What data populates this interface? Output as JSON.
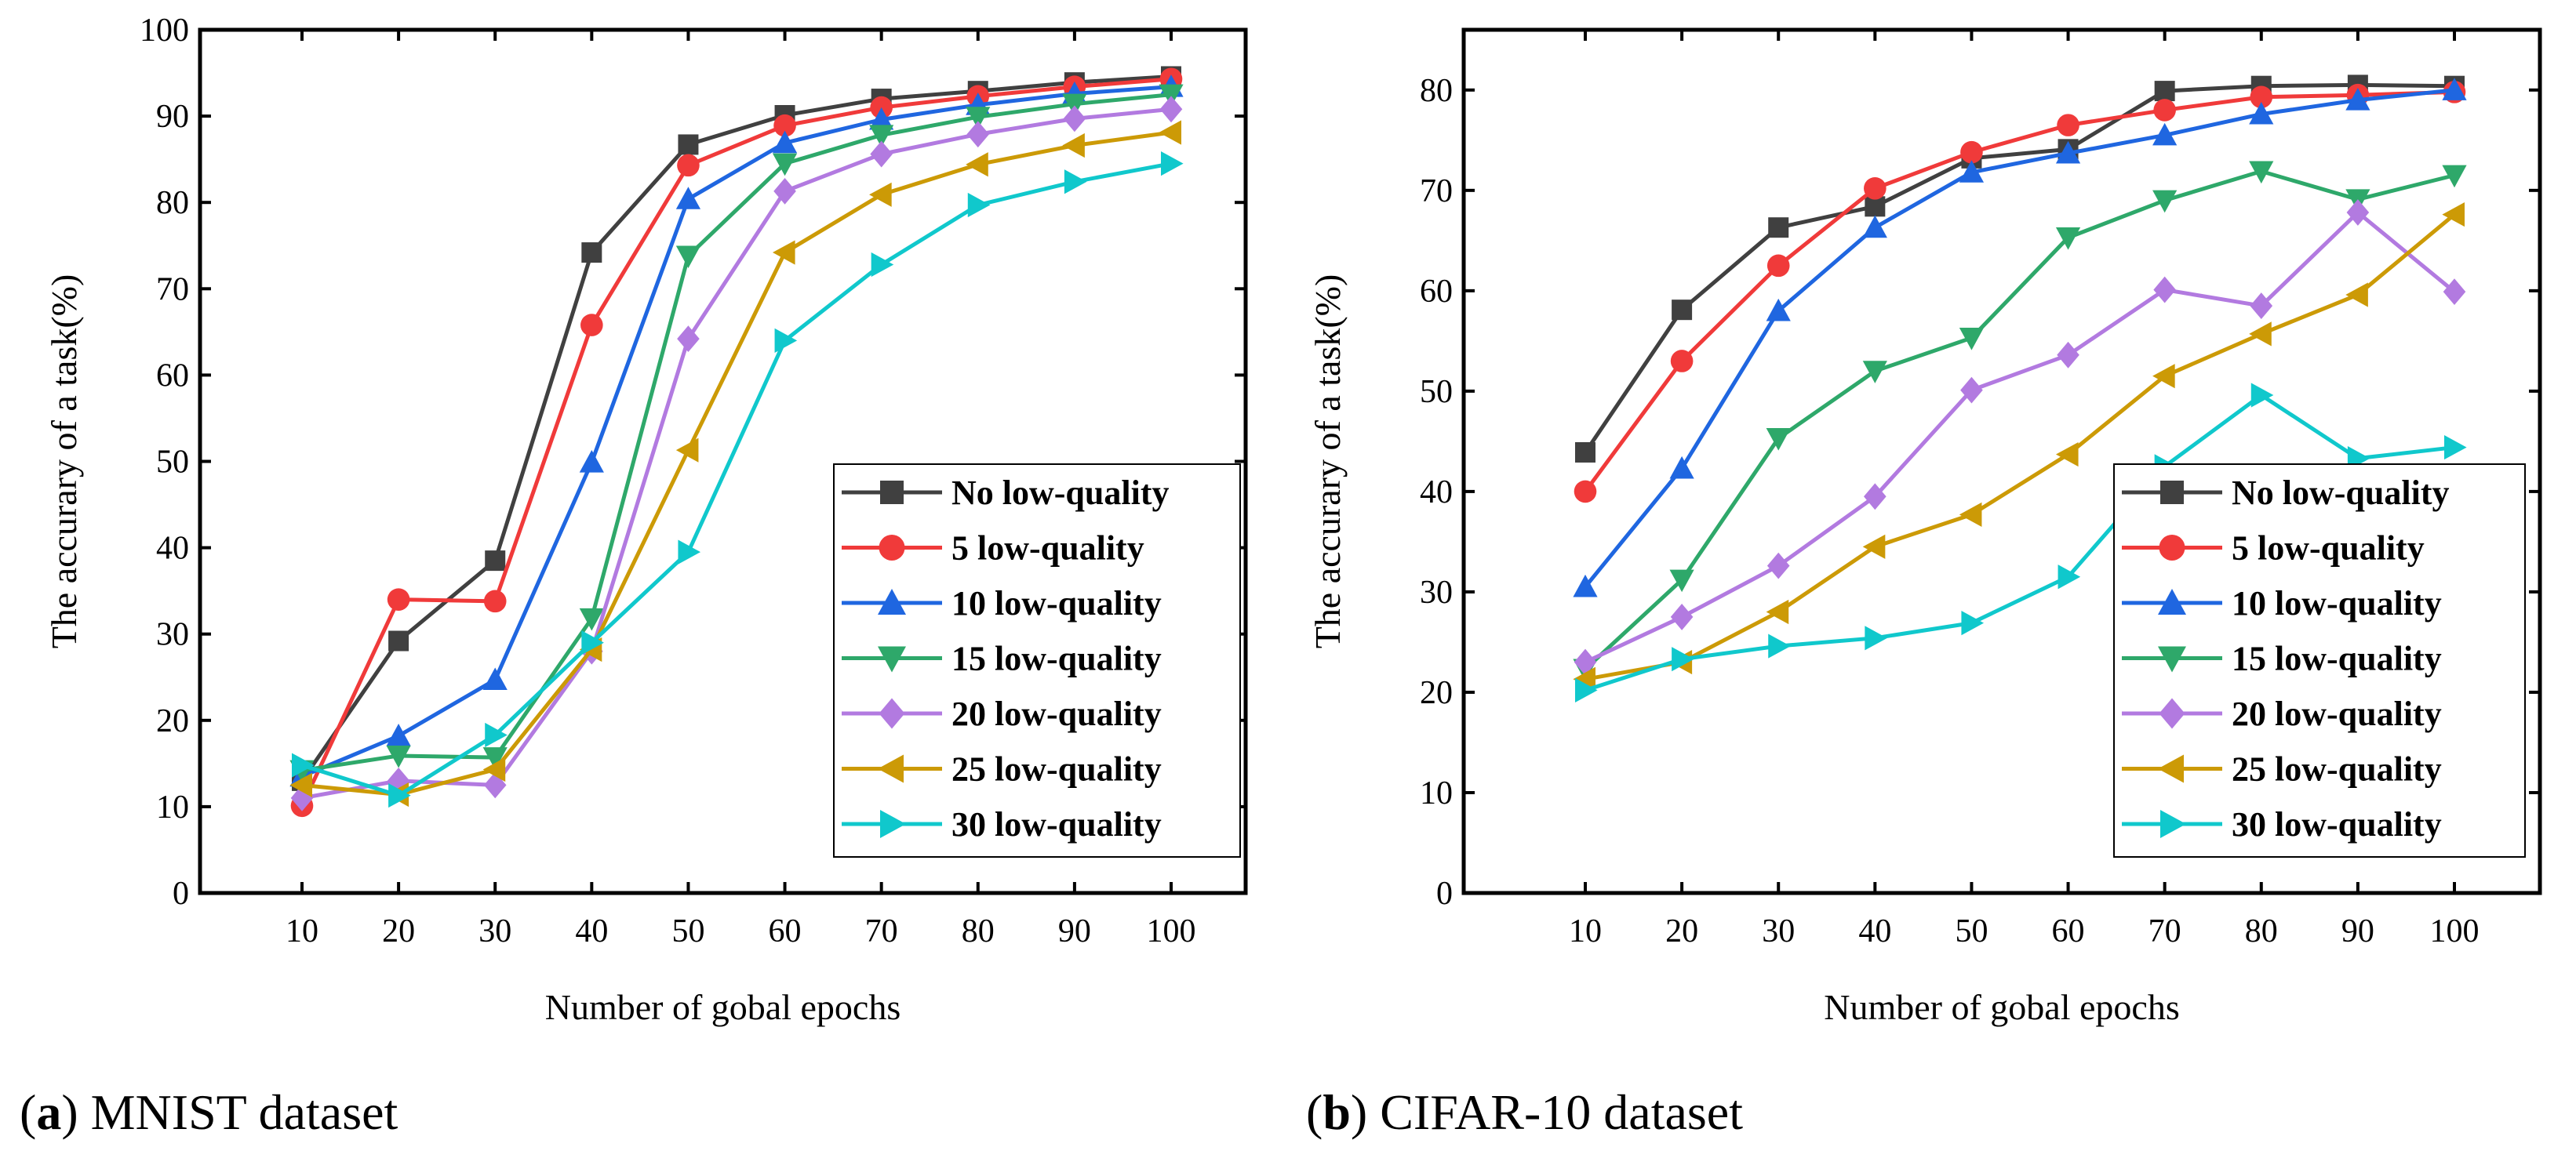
{
  "chart_data": [
    {
      "type": "line",
      "caption_letter": "a",
      "caption_text": " MNIST dataset",
      "xlabel": "Number of gobal epochs",
      "ylabel": "The accurary of a task(%)",
      "x": [
        10,
        20,
        30,
        40,
        50,
        60,
        70,
        80,
        90,
        100
      ],
      "ylim": [
        0,
        100
      ],
      "yticks": [
        0,
        10,
        20,
        30,
        40,
        50,
        60,
        70,
        80,
        90,
        100
      ],
      "legend_position": "bottom-right",
      "series": [
        {
          "name": "No low-quality",
          "color": "#404040",
          "marker": "square",
          "values": [
            13,
            29.2,
            38.5,
            74.2,
            86.7,
            90.1,
            92.0,
            92.9,
            93.9,
            94.6
          ]
        },
        {
          "name": "5 low-quality",
          "color": "#f03a3a",
          "marker": "circle",
          "values": [
            10.1,
            34.0,
            33.8,
            65.8,
            84.3,
            88.9,
            91.0,
            92.3,
            93.4,
            94.3
          ]
        },
        {
          "name": "10 low-quality",
          "color": "#1f66e0",
          "marker": "triangle-up",
          "values": [
            13.5,
            18.2,
            24.7,
            49.9,
            80.4,
            86.9,
            89.6,
            91.3,
            92.6,
            93.4
          ]
        },
        {
          "name": "15 low-quality",
          "color": "#2ea86a",
          "marker": "triangle-down",
          "values": [
            14.2,
            15.9,
            15.7,
            31.8,
            73.8,
            84.5,
            87.8,
            89.9,
            91.4,
            92.5
          ]
        },
        {
          "name": "20 low-quality",
          "color": "#b27ae0",
          "marker": "diamond",
          "values": [
            11.0,
            13.0,
            12.5,
            28.0,
            64.2,
            81.3,
            85.6,
            87.9,
            89.7,
            90.8
          ]
        },
        {
          "name": "25 low-quality",
          "color": "#cc9a06",
          "marker": "triangle-left",
          "values": [
            12.5,
            11.4,
            14.3,
            28.2,
            51.3,
            74.2,
            80.9,
            84.4,
            86.6,
            88.1
          ]
        },
        {
          "name": "30 low-quality",
          "color": "#10c8cc",
          "marker": "triangle-right",
          "values": [
            14.8,
            11.3,
            18.3,
            29.0,
            39.5,
            64.0,
            72.8,
            79.7,
            82.4,
            84.5
          ]
        }
      ]
    },
    {
      "type": "line",
      "caption_letter": "b",
      "caption_text": " CIFAR-10 dataset",
      "xlabel": "Number of gobal epochs",
      "ylabel": "The accurary of a task(%)",
      "x": [
        10,
        20,
        30,
        40,
        50,
        60,
        70,
        80,
        90,
        100
      ],
      "ylim": [
        0,
        86
      ],
      "yticks": [
        0,
        10,
        20,
        30,
        40,
        50,
        60,
        70,
        80
      ],
      "legend_position": "bottom-right",
      "series": [
        {
          "name": "No low-quality",
          "color": "#404040",
          "marker": "square",
          "values": [
            43.9,
            58.1,
            66.3,
            68.4,
            73.2,
            74.1,
            79.9,
            80.4,
            80.5,
            80.4
          ]
        },
        {
          "name": "5 low-quality",
          "color": "#f03a3a",
          "marker": "circle",
          "values": [
            40.0,
            53.0,
            62.5,
            70.2,
            73.8,
            76.5,
            78.0,
            79.3,
            79.5,
            79.8
          ]
        },
        {
          "name": "10 low-quality",
          "color": "#1f66e0",
          "marker": "triangle-up",
          "values": [
            30.5,
            42.3,
            58.0,
            66.3,
            71.8,
            73.7,
            75.5,
            77.6,
            79.0,
            80.0
          ]
        },
        {
          "name": "15 low-quality",
          "color": "#2ea86a",
          "marker": "triangle-down",
          "values": [
            22.3,
            31.2,
            45.3,
            52.0,
            55.3,
            65.3,
            69.0,
            71.9,
            69.1,
            71.5
          ]
        },
        {
          "name": "20 low-quality",
          "color": "#b27ae0",
          "marker": "diamond",
          "values": [
            23.0,
            27.5,
            32.6,
            39.5,
            50.1,
            53.6,
            60.1,
            58.5,
            67.8,
            59.9
          ]
        },
        {
          "name": "25 low-quality",
          "color": "#cc9a06",
          "marker": "triangle-left",
          "values": [
            21.3,
            23.0,
            28.0,
            34.5,
            37.7,
            43.7,
            51.5,
            55.7,
            59.6,
            67.6
          ]
        },
        {
          "name": "30 low-quality",
          "color": "#10c8cc",
          "marker": "triangle-right",
          "values": [
            20.2,
            23.3,
            24.6,
            25.4,
            26.9,
            31.5,
            42.5,
            49.6,
            43.3,
            44.4
          ]
        }
      ]
    }
  ]
}
